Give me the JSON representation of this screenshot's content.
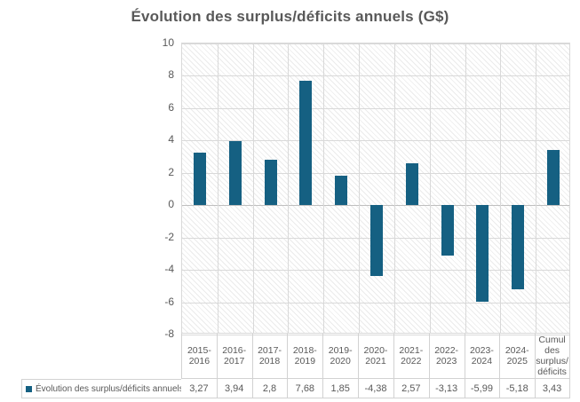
{
  "chart_data": {
    "type": "bar",
    "title": "Évolution des surplus/déficits annuels (G$)",
    "series_name": "Évolution des surplus/déficits annuels",
    "categories": [
      "2015-2016",
      "2016-2017",
      "2017-2018",
      "2018-2019",
      "2019-2020",
      "2020-2021",
      "2021-2022",
      "2022-2023",
      "2023-2024",
      "2024-2025",
      "Cumul des surplus/déficits"
    ],
    "header_lines": [
      [
        "2015-",
        "2016"
      ],
      [
        "2016-",
        "2017"
      ],
      [
        "2017-",
        "2018"
      ],
      [
        "2018-",
        "2019"
      ],
      [
        "2019-",
        "2020"
      ],
      [
        "2020-",
        "2021"
      ],
      [
        "2021-",
        "2022"
      ],
      [
        "2022-",
        "2023"
      ],
      [
        "2023-",
        "2024"
      ],
      [
        "2024-",
        "2025"
      ],
      [
        "Cumul",
        "des",
        "surplus/",
        "déficits"
      ]
    ],
    "values": [
      3.27,
      3.94,
      2.8,
      7.68,
      1.85,
      -4.38,
      2.57,
      -3.13,
      -5.99,
      -5.18,
      3.43
    ],
    "value_labels": [
      "3,27",
      "3,94",
      "2,8",
      "7,68",
      "1,85",
      "-4,38",
      "2,57",
      "-3,13",
      "-5,99",
      "-5,18",
      "3,43"
    ],
    "ylabel": "",
    "xlabel": "",
    "ylim": [
      -8,
      10
    ],
    "yticks": [
      10,
      8,
      6,
      4,
      2,
      0,
      -2,
      -4,
      -6,
      -8
    ],
    "grid": true,
    "plot_area_fill": "light-diagonal-hatch",
    "legend_position": "data-table-left",
    "colors": {
      "bar": "#156082",
      "gridline": "#d9d9d9",
      "zero_line": "#bfbfbf",
      "axis_text": "#595959",
      "title_text": "#595959",
      "table_border": "#d2d2d2",
      "hatch_line": "#ebebeb"
    }
  }
}
